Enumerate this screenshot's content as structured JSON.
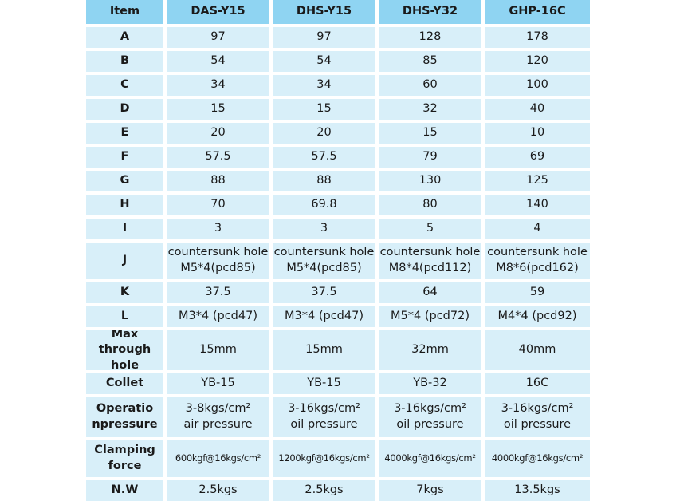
{
  "table": {
    "header": [
      "Item",
      "DAS-Y15",
      "DHS-Y15",
      "DHS-Y32",
      "GHP-16C"
    ],
    "rows": [
      [
        "A",
        "97",
        "97",
        "128",
        "178"
      ],
      [
        "B",
        "54",
        "54",
        "85",
        "120"
      ],
      [
        "C",
        "34",
        "34",
        "60",
        "100"
      ],
      [
        "D",
        "15",
        "15",
        "32",
        "40"
      ],
      [
        "E",
        "20",
        "20",
        "15",
        "10"
      ],
      [
        "F",
        "57.5",
        "57.5",
        "79",
        "69"
      ],
      [
        "G",
        "88",
        "88",
        "130",
        "125"
      ],
      [
        "H",
        "70",
        "69.8",
        "80",
        "140"
      ],
      [
        "I",
        "3",
        "3",
        "5",
        "4"
      ],
      [
        "J",
        "countersunk hole\nM5*4(pcd85)",
        "countersunk hole\nM5*4(pcd85)",
        "countersunk hole\nM8*4(pcd112)",
        "countersunk hole\nM8*6(pcd162)"
      ],
      [
        "K",
        "37.5",
        "37.5",
        "64",
        "59"
      ],
      [
        "L",
        "M3*4 (pcd47)",
        "M3*4 (pcd47)",
        "M5*4 (pcd72)",
        "M4*4 (pcd92)"
      ],
      [
        "Max\nthrough hole",
        "15mm",
        "15mm",
        "32mm",
        "40mm"
      ],
      [
        "Collet",
        "YB-15",
        "YB-15",
        "YB-32",
        "16C"
      ],
      [
        "Operatio\nnpressure",
        "3-8kgs/cm²\nair pressure",
        "3-16kgs/cm²\noil pressure",
        "3-16kgs/cm²\noil pressure",
        "3-16kgs/cm²\noil pressure"
      ],
      [
        "Clamping\nforce",
        "600kgf@16kgs/cm²",
        "1200kgf@16kgs/cm²",
        "4000kgf@16kgs/cm²",
        "4000kgf@16kgs/cm²"
      ],
      [
        "N.W",
        "2.5kgs",
        "2.5kgs",
        "7kgs",
        "13.5kgs"
      ]
    ]
  }
}
